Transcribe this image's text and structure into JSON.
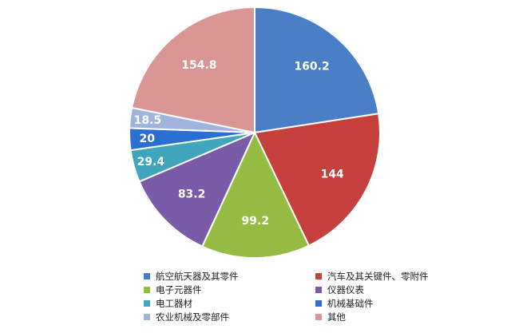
{
  "chart_data": {
    "type": "pie",
    "start_angle": "top",
    "direction": "clockwise",
    "legend_position": "bottom",
    "slices": [
      {
        "label": "航空航天器及其零件",
        "value": 160.2,
        "value_label": "160.2",
        "color": "#4a7fc8"
      },
      {
        "label": "汽车及其关键件、零附件",
        "value": 144,
        "value_label": "144",
        "color": "#c6403d"
      },
      {
        "label": "电子元器件",
        "value": 99.2,
        "value_label": "99.2",
        "color": "#96bc44"
      },
      {
        "label": "仪器仪表",
        "value": 83.2,
        "value_label": "83.2",
        "color": "#7a5ba8"
      },
      {
        "label": "电工器材",
        "value": 29.4,
        "value_label": "29.4",
        "color": "#3fa6bd"
      },
      {
        "label": "机械基础件",
        "value": 20,
        "value_label": "20",
        "color": "#2c6fd3"
      },
      {
        "label": "农业机械及零部件",
        "value": 18.5,
        "value_label": "18.5",
        "color": "#9fb4dc"
      },
      {
        "label": "其他",
        "value": 154.8,
        "value_label": "154.8",
        "color": "#d99694"
      }
    ]
  }
}
